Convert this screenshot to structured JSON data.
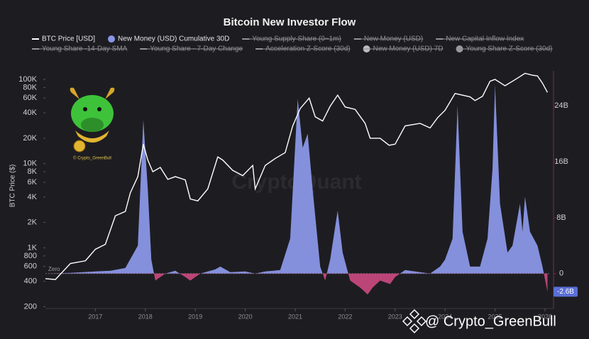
{
  "chart_data": {
    "type": "line",
    "title": "Bitcoin New Investor Flow",
    "y_label": "BTC Price ($)",
    "log_y": true,
    "watermark": "CryptoQuant",
    "badge_text": "© Crypto_GreenBull",
    "overlay_text": "@ Crypto_GreenBull",
    "zero_label": "Zero",
    "xlim": [
      2016,
      2026.1
    ],
    "xticks": [
      2017,
      2018,
      2019,
      2020,
      2021,
      2022,
      2023,
      2024,
      2025,
      2026
    ],
    "ylim": [
      190,
      126000
    ],
    "yticks": [
      200,
      400,
      600,
      800,
      {
        "value": 1000,
        "label": "1K"
      },
      {
        "value": 2000,
        "label": "2K"
      },
      {
        "value": 4000,
        "label": "4K"
      },
      {
        "value": 6000,
        "label": "6K"
      },
      {
        "value": 8000,
        "label": "8K"
      },
      {
        "value": 10000,
        "label": "10K"
      },
      {
        "value": 20000,
        "label": "20K"
      },
      {
        "value": 40000,
        "label": "40K"
      },
      {
        "value": 60000,
        "label": "60K"
      },
      {
        "value": 80000,
        "label": "80K"
      },
      {
        "value": 100000,
        "label": "100K"
      }
    ],
    "y2lim": [
      -5,
      29
    ],
    "y2ticks": [
      0,
      {
        "value": 8,
        "label": "8B"
      },
      {
        "value": 16,
        "label": "16B"
      },
      {
        "value": 24,
        "label": "24B"
      }
    ],
    "current_marker": {
      "value": -2.6,
      "label": "-2.6B"
    },
    "series": [
      {
        "name": "BTC Price [USD]",
        "color": "#ffffff",
        "marker": "line",
        "x": [
          2016.0,
          2016.2,
          2016.5,
          2016.8,
          2017.0,
          2017.2,
          2017.4,
          2017.6,
          2017.7,
          2017.85,
          2017.96,
          2018.05,
          2018.15,
          2018.3,
          2018.45,
          2018.6,
          2018.8,
          2018.9,
          2019.05,
          2019.25,
          2019.45,
          2019.55,
          2019.75,
          2019.95,
          2020.15,
          2020.2,
          2020.4,
          2020.6,
          2020.8,
          2020.95,
          2021.1,
          2021.28,
          2021.4,
          2021.55,
          2021.7,
          2021.85,
          2022.0,
          2022.2,
          2022.4,
          2022.5,
          2022.7,
          2022.88,
          2023.0,
          2023.2,
          2023.5,
          2023.7,
          2023.85,
          2024.0,
          2024.2,
          2024.5,
          2024.6,
          2024.75,
          2024.9,
          2025.0,
          2025.2,
          2025.35,
          2025.5,
          2025.6,
          2025.75,
          2025.85,
          2025.95,
          2026.05
        ],
        "values": [
          430,
          420,
          650,
          700,
          960,
          1100,
          2400,
          2700,
          4500,
          7000,
          17000,
          11000,
          8000,
          9000,
          6500,
          7000,
          6400,
          3800,
          3600,
          5000,
          12000,
          11000,
          8300,
          7200,
          9500,
          5000,
          9500,
          11500,
          13500,
          28000,
          45000,
          60000,
          36000,
          32000,
          48000,
          65000,
          47000,
          44000,
          30000,
          20000,
          20000,
          16500,
          17000,
          28000,
          30000,
          26500,
          35000,
          43000,
          68000,
          62000,
          56000,
          63000,
          95000,
          100000,
          84000,
          95000,
          108000,
          118000,
          112000,
          110000,
          90000,
          70000
        ]
      },
      {
        "name": "New Money (USD) Cumulative 30D",
        "color": "#8a96e6",
        "negative_color": "#c4477d",
        "marker": "circle",
        "axis": "y2",
        "x": [
          2016.0,
          2016.5,
          2017.0,
          2017.3,
          2017.6,
          2017.85,
          2017.96,
          2018.05,
          2018.12,
          2018.2,
          2018.4,
          2018.6,
          2018.8,
          2018.9,
          2019.1,
          2019.4,
          2019.5,
          2019.7,
          2020.0,
          2020.2,
          2020.4,
          2020.7,
          2020.9,
          2021.05,
          2021.15,
          2021.25,
          2021.35,
          2021.5,
          2021.6,
          2021.7,
          2021.85,
          2021.95,
          2022.1,
          2022.3,
          2022.45,
          2022.55,
          2022.7,
          2022.9,
          2023.0,
          2023.2,
          2023.4,
          2023.7,
          2023.9,
          2024.0,
          2024.15,
          2024.25,
          2024.35,
          2024.5,
          2024.7,
          2024.85,
          2024.95,
          2025.0,
          2025.1,
          2025.25,
          2025.35,
          2025.5,
          2025.55,
          2025.6,
          2025.7,
          2025.85,
          2025.95,
          2026.05
        ],
        "values": [
          0,
          0.1,
          0.3,
          0.4,
          0.8,
          4,
          22,
          12,
          2,
          -1,
          0,
          0.4,
          -0.5,
          -1,
          0,
          0.6,
          1,
          0.2,
          0.3,
          0,
          0.3,
          0.5,
          5,
          25,
          18,
          20,
          12,
          1,
          -1,
          2,
          9,
          3,
          -1,
          -2,
          -3,
          -2,
          -1,
          -1.5,
          -0.5,
          0.5,
          0.3,
          0,
          1,
          2,
          5,
          24,
          6,
          1,
          1,
          5,
          15,
          27,
          10,
          3,
          4,
          10,
          6,
          11,
          6,
          4,
          1,
          -2.6
        ]
      }
    ],
    "hidden_series": [
      {
        "name": "Young Supply Share (0~1m)",
        "color": "#9a9a9a",
        "marker": "line"
      },
      {
        "name": "New Money (USD)",
        "color": "#9a9a9a",
        "marker": "line"
      },
      {
        "name": "New Capital Inflow Index",
        "color": "#9a9a9a",
        "marker": "line"
      },
      {
        "name": "Young Share -14-Day SMA",
        "color": "#9a9a9a",
        "marker": "line"
      },
      {
        "name": "Young Share - 7-Day Change",
        "color": "#9a9a9a",
        "marker": "line"
      },
      {
        "name": "Acceleration Z-Score (30d)",
        "color": "#9a9a9a",
        "marker": "line"
      },
      {
        "name": "New Money (USD) 7D",
        "color": "#bdbdbd",
        "marker": "circle"
      },
      {
        "name": "Young Share Z-Score (30d)",
        "color": "#9a9a9a",
        "marker": "circle"
      }
    ]
  }
}
